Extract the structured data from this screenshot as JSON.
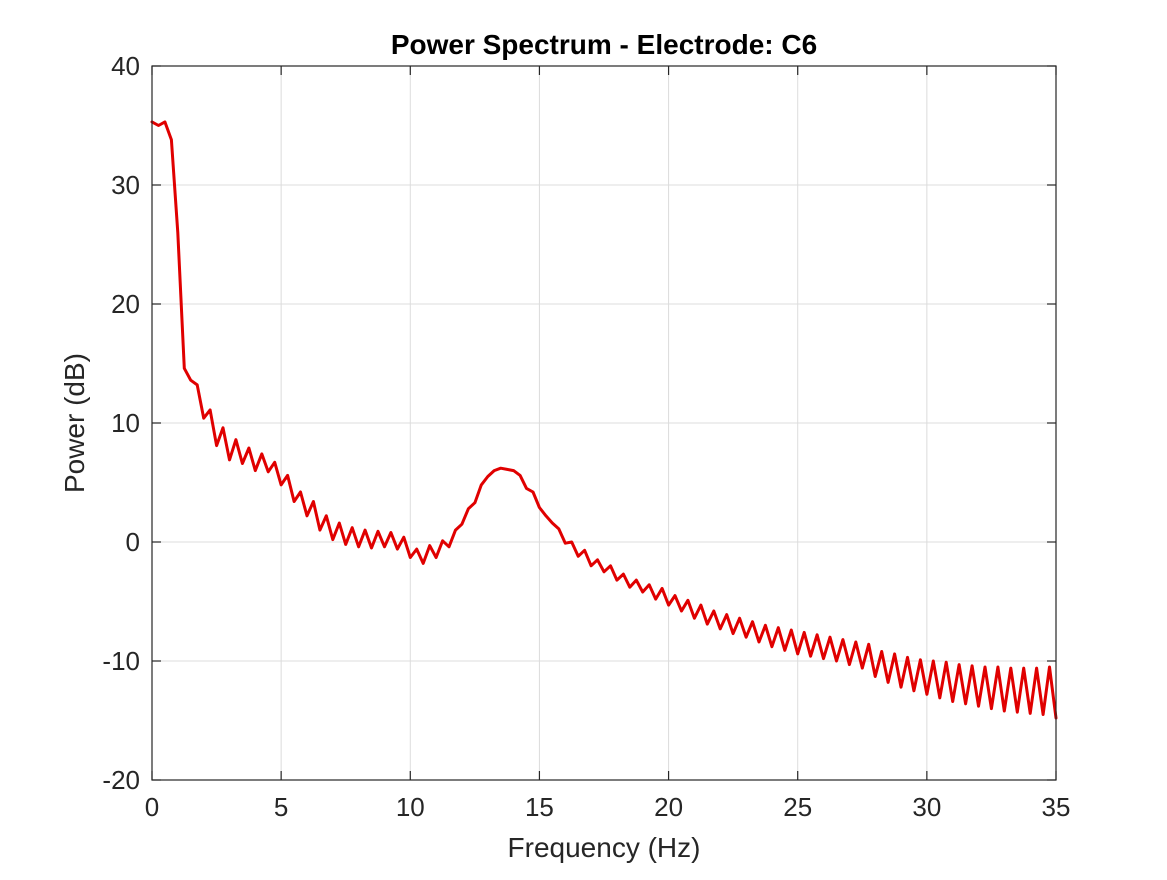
{
  "chart_data": {
    "type": "line",
    "title": "Power Spectrum - Electrode: C6",
    "xlabel": "Frequency (Hz)",
    "ylabel": "Power (dB)",
    "xlim": [
      0,
      35
    ],
    "ylim": [
      -20,
      40
    ],
    "xticks": [
      0,
      5,
      10,
      15,
      20,
      25,
      30,
      35
    ],
    "yticks": [
      -20,
      -10,
      0,
      10,
      20,
      30,
      40
    ],
    "xtick_labels": [
      "0",
      "5",
      "10",
      "15",
      "20",
      "25",
      "30",
      "35"
    ],
    "ytick_labels": [
      "-20",
      "-10",
      "0",
      "10",
      "20",
      "30",
      "40"
    ],
    "grid": true,
    "box": true,
    "line_color": "#e00000",
    "axis_color": "#262626",
    "grid_color": "#dcdcdc",
    "series": [
      {
        "x": [
          0.0,
          0.25,
          0.5,
          0.75,
          1.0,
          1.25,
          1.5,
          1.75,
          2.0,
          2.25,
          2.5,
          2.75,
          3.0,
          3.25,
          3.5,
          3.75,
          4.0,
          4.25,
          4.5,
          4.75,
          5.0,
          5.25,
          5.5,
          5.75,
          6.0,
          6.25,
          6.5,
          6.75,
          7.0,
          7.25,
          7.5,
          7.75,
          8.0,
          8.25,
          8.5,
          8.75,
          9.0,
          9.25,
          9.5,
          9.75,
          10.0,
          10.25,
          10.5,
          10.75,
          11.0,
          11.25,
          11.5,
          11.75,
          12.0,
          12.25,
          12.5,
          12.75,
          13.0,
          13.25,
          13.5,
          13.75,
          14.0,
          14.25,
          14.5,
          14.75,
          15.0,
          15.25,
          15.5,
          15.75,
          16.0,
          16.25,
          16.5,
          16.75,
          17.0,
          17.25,
          17.5,
          17.75,
          18.0,
          18.25,
          18.5,
          18.75,
          19.0,
          19.25,
          19.5,
          19.75,
          20.0,
          20.25,
          20.5,
          20.75,
          21.0,
          21.25,
          21.5,
          21.75,
          22.0,
          22.25,
          22.5,
          22.75,
          23.0,
          23.25,
          23.5,
          23.75,
          24.0,
          24.25,
          24.5,
          24.75,
          25.0,
          25.25,
          25.5,
          25.75,
          26.0,
          26.25,
          26.5,
          26.75,
          27.0,
          27.25,
          27.5,
          27.75,
          28.0,
          28.25,
          28.5,
          28.75,
          29.0,
          29.25,
          29.5,
          29.75,
          30.0,
          30.25,
          30.5,
          30.75,
          31.0,
          31.25,
          31.5,
          31.75,
          32.0,
          32.25,
          32.5,
          32.75,
          33.0,
          33.25,
          33.5,
          33.75,
          34.0,
          34.25,
          34.5,
          34.75,
          35.0
        ],
        "y": [
          35.3,
          35.0,
          35.3,
          33.8,
          26.0,
          14.6,
          13.6,
          13.2,
          10.4,
          11.1,
          8.1,
          9.6,
          6.9,
          8.6,
          6.6,
          7.9,
          6.0,
          7.4,
          5.9,
          6.7,
          4.8,
          5.6,
          3.4,
          4.2,
          2.2,
          3.4,
          1.0,
          2.2,
          0.2,
          1.6,
          -0.2,
          1.2,
          -0.4,
          1.0,
          -0.5,
          0.9,
          -0.4,
          0.8,
          -0.6,
          0.4,
          -1.3,
          -0.6,
          -1.8,
          -0.3,
          -1.3,
          0.1,
          -0.4,
          1.0,
          1.5,
          2.8,
          3.3,
          4.8,
          5.5,
          6.0,
          6.2,
          6.1,
          6.0,
          5.6,
          4.5,
          4.2,
          2.9,
          2.2,
          1.6,
          1.1,
          -0.1,
          0.0,
          -1.2,
          -0.7,
          -2.0,
          -1.5,
          -2.5,
          -2.0,
          -3.2,
          -2.7,
          -3.8,
          -3.2,
          -4.2,
          -3.6,
          -4.8,
          -3.9,
          -5.3,
          -4.5,
          -5.8,
          -4.9,
          -6.4,
          -5.3,
          -6.9,
          -5.8,
          -7.3,
          -6.1,
          -7.7,
          -6.4,
          -8.0,
          -6.7,
          -8.4,
          -7.0,
          -8.8,
          -7.2,
          -9.1,
          -7.4,
          -9.4,
          -7.6,
          -9.6,
          -7.8,
          -9.8,
          -8.0,
          -10.0,
          -8.2,
          -10.3,
          -8.4,
          -10.6,
          -8.6,
          -11.3,
          -9.2,
          -11.8,
          -9.4,
          -12.2,
          -9.7,
          -12.5,
          -9.9,
          -12.8,
          -10.0,
          -13.1,
          -10.1,
          -13.4,
          -10.3,
          -13.6,
          -10.4,
          -13.8,
          -10.5,
          -14.0,
          -10.5,
          -14.2,
          -10.6,
          -14.3,
          -10.6,
          -14.4,
          -10.6,
          -14.5,
          -10.5,
          -14.8
        ]
      }
    ]
  }
}
